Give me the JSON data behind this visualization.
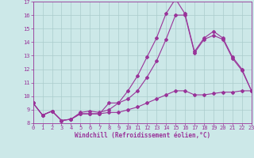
{
  "xlabel": "Windchill (Refroidissement éolien,°C)",
  "xlim": [
    0,
    23
  ],
  "ylim": [
    8,
    17
  ],
  "yticks": [
    8,
    9,
    10,
    11,
    12,
    13,
    14,
    15,
    16,
    17
  ],
  "xticks": [
    0,
    1,
    2,
    3,
    4,
    5,
    6,
    7,
    8,
    9,
    10,
    11,
    12,
    13,
    14,
    15,
    16,
    17,
    18,
    19,
    20,
    21,
    22,
    23
  ],
  "line_color": "#993399",
  "bg_color": "#cce8e8",
  "grid_color": "#aacccc",
  "line1_x": [
    0,
    1,
    2,
    3,
    4,
    5,
    6,
    7,
    8,
    9,
    10,
    11,
    12,
    13,
    14,
    15,
    16,
    17,
    18,
    19,
    20,
    21,
    22,
    23
  ],
  "line1_y": [
    9.5,
    8.6,
    8.9,
    8.2,
    8.3,
    8.8,
    8.9,
    8.8,
    9.0,
    9.5,
    10.4,
    11.5,
    12.9,
    14.3,
    16.1,
    17.2,
    16.1,
    13.3,
    14.3,
    14.8,
    14.3,
    12.9,
    12.0,
    10.4
  ],
  "line2_x": [
    0,
    1,
    2,
    3,
    4,
    5,
    6,
    7,
    8,
    9,
    10,
    11,
    12,
    13,
    14,
    15,
    16,
    17,
    18,
    19,
    20,
    21,
    22,
    23
  ],
  "line2_y": [
    9.5,
    8.6,
    8.9,
    8.2,
    8.3,
    8.7,
    8.7,
    8.7,
    9.5,
    9.5,
    9.8,
    10.4,
    11.4,
    12.6,
    14.2,
    16.0,
    16.0,
    13.2,
    14.2,
    14.5,
    14.2,
    12.8,
    11.9,
    10.4
  ],
  "line3_x": [
    0,
    1,
    2,
    3,
    4,
    5,
    6,
    7,
    8,
    9,
    10,
    11,
    12,
    13,
    14,
    15,
    16,
    17,
    18,
    19,
    20,
    21,
    22,
    23
  ],
  "line3_y": [
    9.5,
    8.6,
    8.9,
    8.2,
    8.3,
    8.7,
    8.7,
    8.7,
    8.8,
    8.8,
    9.0,
    9.2,
    9.5,
    9.8,
    10.1,
    10.4,
    10.4,
    10.1,
    10.1,
    10.2,
    10.3,
    10.3,
    10.4,
    10.4
  ],
  "font_size_tick": 5.0,
  "font_size_xlabel": 5.5,
  "marker_size": 2.0,
  "line_width": 0.8
}
